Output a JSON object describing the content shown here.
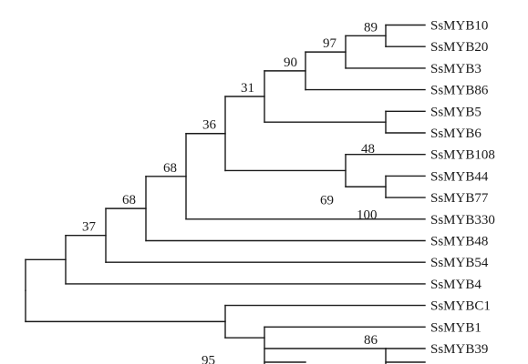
{
  "tree": {
    "leaves": [
      {
        "id": "L1",
        "label": "SsMYB10"
      },
      {
        "id": "L2",
        "label": "SsMYB20"
      },
      {
        "id": "L3",
        "label": "SsMYB3"
      },
      {
        "id": "L4",
        "label": "SsMYB86"
      },
      {
        "id": "L5",
        "label": "SsMYB5"
      },
      {
        "id": "L6",
        "label": "SsMYB6"
      },
      {
        "id": "L7",
        "label": "SsMYB108"
      },
      {
        "id": "L8",
        "label": "SsMYB44"
      },
      {
        "id": "L9",
        "label": "SsMYB77"
      },
      {
        "id": "L10",
        "label": "SsMYB330"
      },
      {
        "id": "L11",
        "label": "SsMYB48"
      },
      {
        "id": "L12",
        "label": "SsMYB54"
      },
      {
        "id": "L13",
        "label": "SsMYB4"
      },
      {
        "id": "L14",
        "label": "SsMYBC1"
      },
      {
        "id": "L15",
        "label": "SsMYB1"
      },
      {
        "id": "L16",
        "label": "SsMYB39"
      }
    ],
    "nodes": [
      {
        "id": "n_10_20",
        "support": "89",
        "children": [
          "L1",
          "L2"
        ]
      },
      {
        "id": "n_3",
        "support": "97",
        "children": [
          "n_10_20",
          "L3"
        ]
      },
      {
        "id": "n_86",
        "support": "90",
        "children": [
          "n_3",
          "L4"
        ]
      },
      {
        "id": "n_5_6",
        "support": "48",
        "children": [
          "L5",
          "L6"
        ]
      },
      {
        "id": "n_31",
        "support": "31",
        "children": [
          "n_86",
          "n_5_6"
        ]
      },
      {
        "id": "n_44_77",
        "support": "100",
        "children": [
          "L8",
          "L9"
        ]
      },
      {
        "id": "n_108",
        "support": "69",
        "children": [
          "L7",
          "n_44_77"
        ]
      },
      {
        "id": "n_36",
        "support": "36",
        "children": [
          "n_31",
          "n_108"
        ]
      },
      {
        "id": "n_330",
        "support": "68",
        "children": [
          "n_36",
          "L10"
        ]
      },
      {
        "id": "n_48",
        "support": "68",
        "children": [
          "n_330",
          "L11"
        ]
      },
      {
        "id": "n_54",
        "support": "37",
        "children": [
          "n_48",
          "L12"
        ]
      },
      {
        "id": "n_4",
        "support": "",
        "children": [
          "n_54",
          "L13"
        ]
      },
      {
        "id": "n_39",
        "support": "86",
        "children": [
          "L16"
        ]
      },
      {
        "id": "n_1",
        "support": "",
        "children": [
          "L15",
          "n_39"
        ]
      },
      {
        "id": "n_c1",
        "support": "95",
        "children": [
          "L14",
          "n_1"
        ]
      },
      {
        "id": "root",
        "support": "",
        "children": [
          "n_4",
          "n_c1"
        ]
      }
    ]
  }
}
